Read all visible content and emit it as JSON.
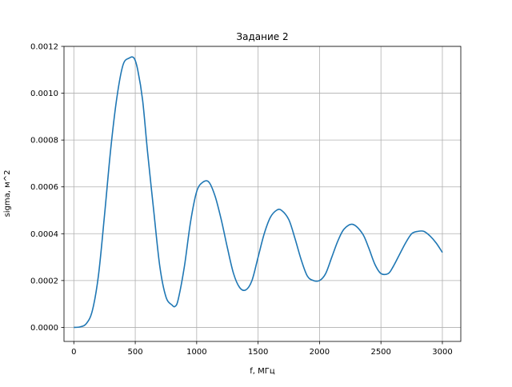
{
  "chart_data": {
    "type": "line",
    "title": "Задание 2",
    "xlabel": "f, МГц",
    "ylabel": "sigma, м^2",
    "xlim": [
      -80,
      3150
    ],
    "ylim": [
      -6e-05,
      0.0012
    ],
    "grid": true,
    "x_ticks": [
      0,
      500,
      1000,
      1500,
      2000,
      2500,
      3000
    ],
    "x_tick_labels": [
      "0",
      "500",
      "1000",
      "1500",
      "2000",
      "2500",
      "3000"
    ],
    "y_ticks": [
      0,
      0.0002,
      0.0004,
      0.0006,
      0.0008,
      0.001,
      0.0012
    ],
    "y_tick_labels": [
      "0.0000",
      "0.0002",
      "0.0004",
      "0.0006",
      "0.0008",
      "0.0010",
      "0.0012"
    ],
    "series": [
      {
        "color": "#1f77b4",
        "x": [
          0,
          50,
          100,
          150,
          200,
          250,
          300,
          350,
          400,
          450,
          490,
          520,
          560,
          600,
          650,
          700,
          750,
          800,
          825,
          850,
          900,
          950,
          1000,
          1050,
          1100,
          1150,
          1200,
          1250,
          1300,
          1350,
          1400,
          1450,
          1500,
          1550,
          1600,
          1650,
          1690,
          1750,
          1800,
          1850,
          1900,
          1950,
          2000,
          2050,
          2100,
          2150,
          2200,
          2270,
          2350,
          2400,
          2450,
          2500,
          2560,
          2600,
          2650,
          2700,
          2750,
          2800,
          2850,
          2900,
          2950,
          3000
        ],
        "y": [
          0.0,
          2e-06,
          1.5e-05,
          7e-05,
          0.00022,
          0.00048,
          0.00076,
          0.00098,
          0.00112,
          0.00115,
          0.00115,
          0.0011,
          0.00097,
          0.00075,
          0.0005,
          0.00026,
          0.00013,
          9.5e-05,
          9e-05,
          0.00012,
          0.00026,
          0.00045,
          0.00058,
          0.00062,
          0.00062,
          0.00056,
          0.00046,
          0.00034,
          0.00023,
          0.00017,
          0.00016,
          0.0002,
          0.0003,
          0.0004,
          0.00047,
          0.0005,
          0.0005,
          0.00046,
          0.00038,
          0.00029,
          0.00022,
          0.0002,
          0.0002,
          0.00023,
          0.0003,
          0.00037,
          0.00042,
          0.00044,
          0.0004,
          0.00034,
          0.00027,
          0.00023,
          0.00023,
          0.00026,
          0.00031,
          0.00036,
          0.0004,
          0.00041,
          0.00041,
          0.00039,
          0.00036,
          0.00032
        ]
      }
    ]
  }
}
